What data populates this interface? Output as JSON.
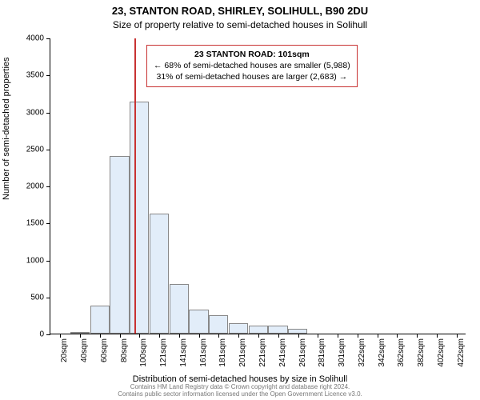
{
  "chart": {
    "type": "histogram",
    "title_main": "23, STANTON ROAD, SHIRLEY, SOLIHULL, B90 2DU",
    "title_sub": "Size of property relative to semi-detached houses in Solihull",
    "x_label": "Distribution of semi-detached houses by size in Solihull",
    "y_label": "Number of semi-detached properties",
    "title_fontsize": 13,
    "label_fontsize": 11,
    "tick_fontsize": 10,
    "background_color": "#ffffff",
    "bar_fill": "#e2edf9",
    "bar_border": "#888888",
    "axis_color": "#000000",
    "annotation_border": "#c83232",
    "indicator_color": "#c83232",
    "ylim": [
      0,
      4000
    ],
    "ytick_step": 500,
    "yticks": [
      0,
      500,
      1000,
      1500,
      2000,
      2500,
      3000,
      3500,
      4000
    ],
    "categories": [
      "20sqm",
      "40sqm",
      "60sqm",
      "80sqm",
      "100sqm",
      "121sqm",
      "141sqm",
      "161sqm",
      "181sqm",
      "201sqm",
      "221sqm",
      "241sqm",
      "261sqm",
      "281sqm",
      "301sqm",
      "322sqm",
      "342sqm",
      "362sqm",
      "382sqm",
      "402sqm",
      "422sqm"
    ],
    "values": [
      0,
      20,
      380,
      2400,
      3130,
      1620,
      670,
      320,
      250,
      140,
      110,
      110,
      60,
      0,
      0,
      0,
      0,
      0,
      0,
      0,
      0
    ],
    "indicator_x_value": 101,
    "indicator_x_min": 20,
    "indicator_x_max": 422,
    "annotation": {
      "line1_strong": "23 STANTON ROAD: 101sqm",
      "line2": "← 68% of semi-detached houses are smaller (5,988)",
      "line3": "31% of semi-detached houses are larger (2,683) →"
    },
    "footer_line1": "Contains HM Land Registry data © Crown copyright and database right 2024.",
    "footer_line2": "Contains public sector information licensed under the Open Government Licence v3.0."
  }
}
